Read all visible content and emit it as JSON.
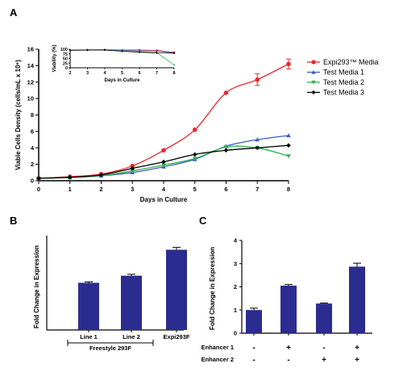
{
  "chart_data": [
    {
      "panel": "A",
      "type": "line",
      "xlabel": "Days in Culture",
      "ylabel": "Viable Cells Density (cells/mL x 10⁶)",
      "x": [
        0,
        1,
        2,
        3,
        4,
        5,
        6,
        7,
        8
      ],
      "xlim": [
        0,
        8
      ],
      "ylim": [
        0,
        16
      ],
      "xticks": [
        "0",
        "1",
        "2",
        "3",
        "4",
        "5",
        "6",
        "7",
        "8"
      ],
      "yticks": [
        "0",
        "2",
        "4",
        "6",
        "8",
        "10",
        "12",
        "14",
        "16"
      ],
      "legend_position": "right",
      "series": [
        {
          "name": "Expi293™ Media",
          "color": "#e8282d",
          "marker": "circle",
          "values": [
            0.3,
            0.5,
            0.8,
            1.8,
            3.7,
            6.2,
            10.7,
            12.3,
            14.2
          ]
        },
        {
          "name": "Test Media 1",
          "color": "#3a5fc4",
          "marker": "triangle-up",
          "values": [
            0.3,
            0.4,
            0.6,
            1.0,
            1.7,
            2.6,
            4.2,
            5.0,
            5.5
          ]
        },
        {
          "name": "Test Media 2",
          "color": "#2fb34a",
          "marker": "triangle-down",
          "values": [
            0.3,
            0.4,
            0.6,
            1.2,
            1.9,
            2.7,
            4.1,
            4.0,
            3.0
          ]
        },
        {
          "name": "Test Media 3",
          "color": "#000000",
          "marker": "diamond",
          "values": [
            0.3,
            0.4,
            0.7,
            1.5,
            2.3,
            3.2,
            3.7,
            4.0,
            4.3
          ]
        }
      ],
      "inset": {
        "type": "line",
        "xlabel": "Days in Culture",
        "ylabel": "Viability (%)",
        "x": [
          2,
          3,
          4,
          5,
          6,
          7,
          8
        ],
        "xlim": [
          2,
          8
        ],
        "ylim": [
          0,
          100
        ],
        "xticks": [
          "2",
          "3",
          "4",
          "5",
          "6",
          "7",
          "8"
        ],
        "yticks": [
          "0",
          "25",
          "50",
          "75",
          "100"
        ],
        "series": [
          {
            "name": "Expi293™ Media",
            "color": "#e8282d",
            "values": [
              96,
              97,
              97,
              96,
              96,
              94,
              83
            ]
          },
          {
            "name": "Test Media 1",
            "color": "#3a5fc4",
            "values": [
              95,
              96,
              97,
              94,
              92,
              90,
              80
            ]
          },
          {
            "name": "Test Media 2",
            "color": "#2fb34a",
            "values": [
              94,
              95,
              96,
              90,
              87,
              82,
              15
            ]
          },
          {
            "name": "Test Media 3",
            "color": "#000000",
            "values": [
              94,
              95,
              96,
              89,
              84,
              80,
              79
            ]
          }
        ]
      }
    },
    {
      "panel": "B",
      "type": "bar",
      "ylabel": "Fold Change in Expression",
      "categories": [
        "Line 1",
        "Line 2",
        "Expi293F"
      ],
      "values": [
        1.0,
        1.15,
        1.7
      ],
      "errors": [
        0.02,
        0.03,
        0.05
      ],
      "ylim": [
        0,
        2
      ],
      "group_label": "Freestyle 293F",
      "bar_color": "#2b2c8f"
    },
    {
      "panel": "C",
      "type": "bar",
      "ylabel": "Fold Change in Expression",
      "categories": [
        "",
        "",
        "",
        ""
      ],
      "values": [
        1.0,
        2.05,
        1.28,
        2.87
      ],
      "errors": [
        0.08,
        0.05,
        0.02,
        0.15
      ],
      "ylim": [
        0,
        4
      ],
      "yticks": [
        "0",
        "1",
        "2",
        "3",
        "4"
      ],
      "bar_color": "#2b2c8f",
      "conditions": [
        {
          "label": "Enhancer 1",
          "signs": [
            "-",
            "+",
            "-",
            "+"
          ]
        },
        {
          "label": "Enhancer 2",
          "signs": [
            "-",
            "-",
            "+",
            "+"
          ]
        }
      ]
    }
  ]
}
